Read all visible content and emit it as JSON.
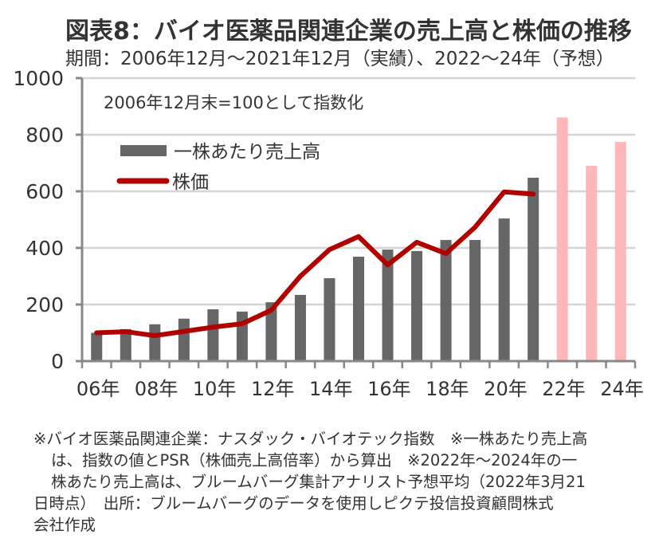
{
  "header": {
    "title": "図表8：バイオ医薬品関連企業の売上高と株価の推移",
    "subtitle": "期間：2006年12月～2021年12月（実績）、2022～24年（予想）"
  },
  "chart_data": {
    "type": "bar+line",
    "title": "図表8：バイオ医薬品関連企業の売上高と株価の推移",
    "subtitle": "期間：2006年12月～2021年12月（実績）、2022～24年（予想）",
    "annotation": "2006年12月末=100として指数化",
    "xlabel": "",
    "ylabel": "",
    "ylim": [
      0,
      1000
    ],
    "yticks": [
      0,
      200,
      400,
      600,
      800,
      1000
    ],
    "grid": true,
    "legend_position": "top-left",
    "categories": [
      "2006",
      "2007",
      "2008",
      "2009",
      "2010",
      "2011",
      "2012",
      "2013",
      "2014",
      "2015",
      "2016",
      "2017",
      "2018",
      "2019",
      "2020",
      "2021",
      "2022",
      "2023",
      "2024"
    ],
    "xtick_labels": [
      "06年",
      "08年",
      "10年",
      "12年",
      "14年",
      "16年",
      "18年",
      "20年",
      "22年",
      "24年"
    ],
    "series": [
      {
        "name": "一株あたり売上高",
        "type": "bar",
        "color": "#666666",
        "forecast_color": "#FFB7BA",
        "forecast_from": "2022",
        "values": [
          100,
          113,
          130,
          150,
          183,
          175,
          208,
          234,
          293,
          369,
          394,
          389,
          428,
          428,
          504,
          648,
          861,
          690,
          775
        ]
      },
      {
        "name": "株価",
        "type": "line",
        "color": "#B00000",
        "values": [
          100,
          104,
          90,
          105,
          120,
          132,
          180,
          300,
          394,
          440,
          340,
          420,
          380,
          473,
          598,
          590,
          null,
          null,
          null
        ]
      }
    ]
  },
  "notes": {
    "line1": "※バイオ医薬品関連企業：ナスダック・バイオテック指数　※一株あたり売上高",
    "line2": "は、指数の値とPSR（株価売上高倍率）から算出　※2022年～2024年の一",
    "line3": "株あたり売上高は、ブルームバーグ集計アナリスト予想平均（2022年3月21",
    "line4": "日時点）　出所：ブルームバーグのデータを使用しピクテ投信投資顧問株式",
    "line5": "会社作成"
  }
}
